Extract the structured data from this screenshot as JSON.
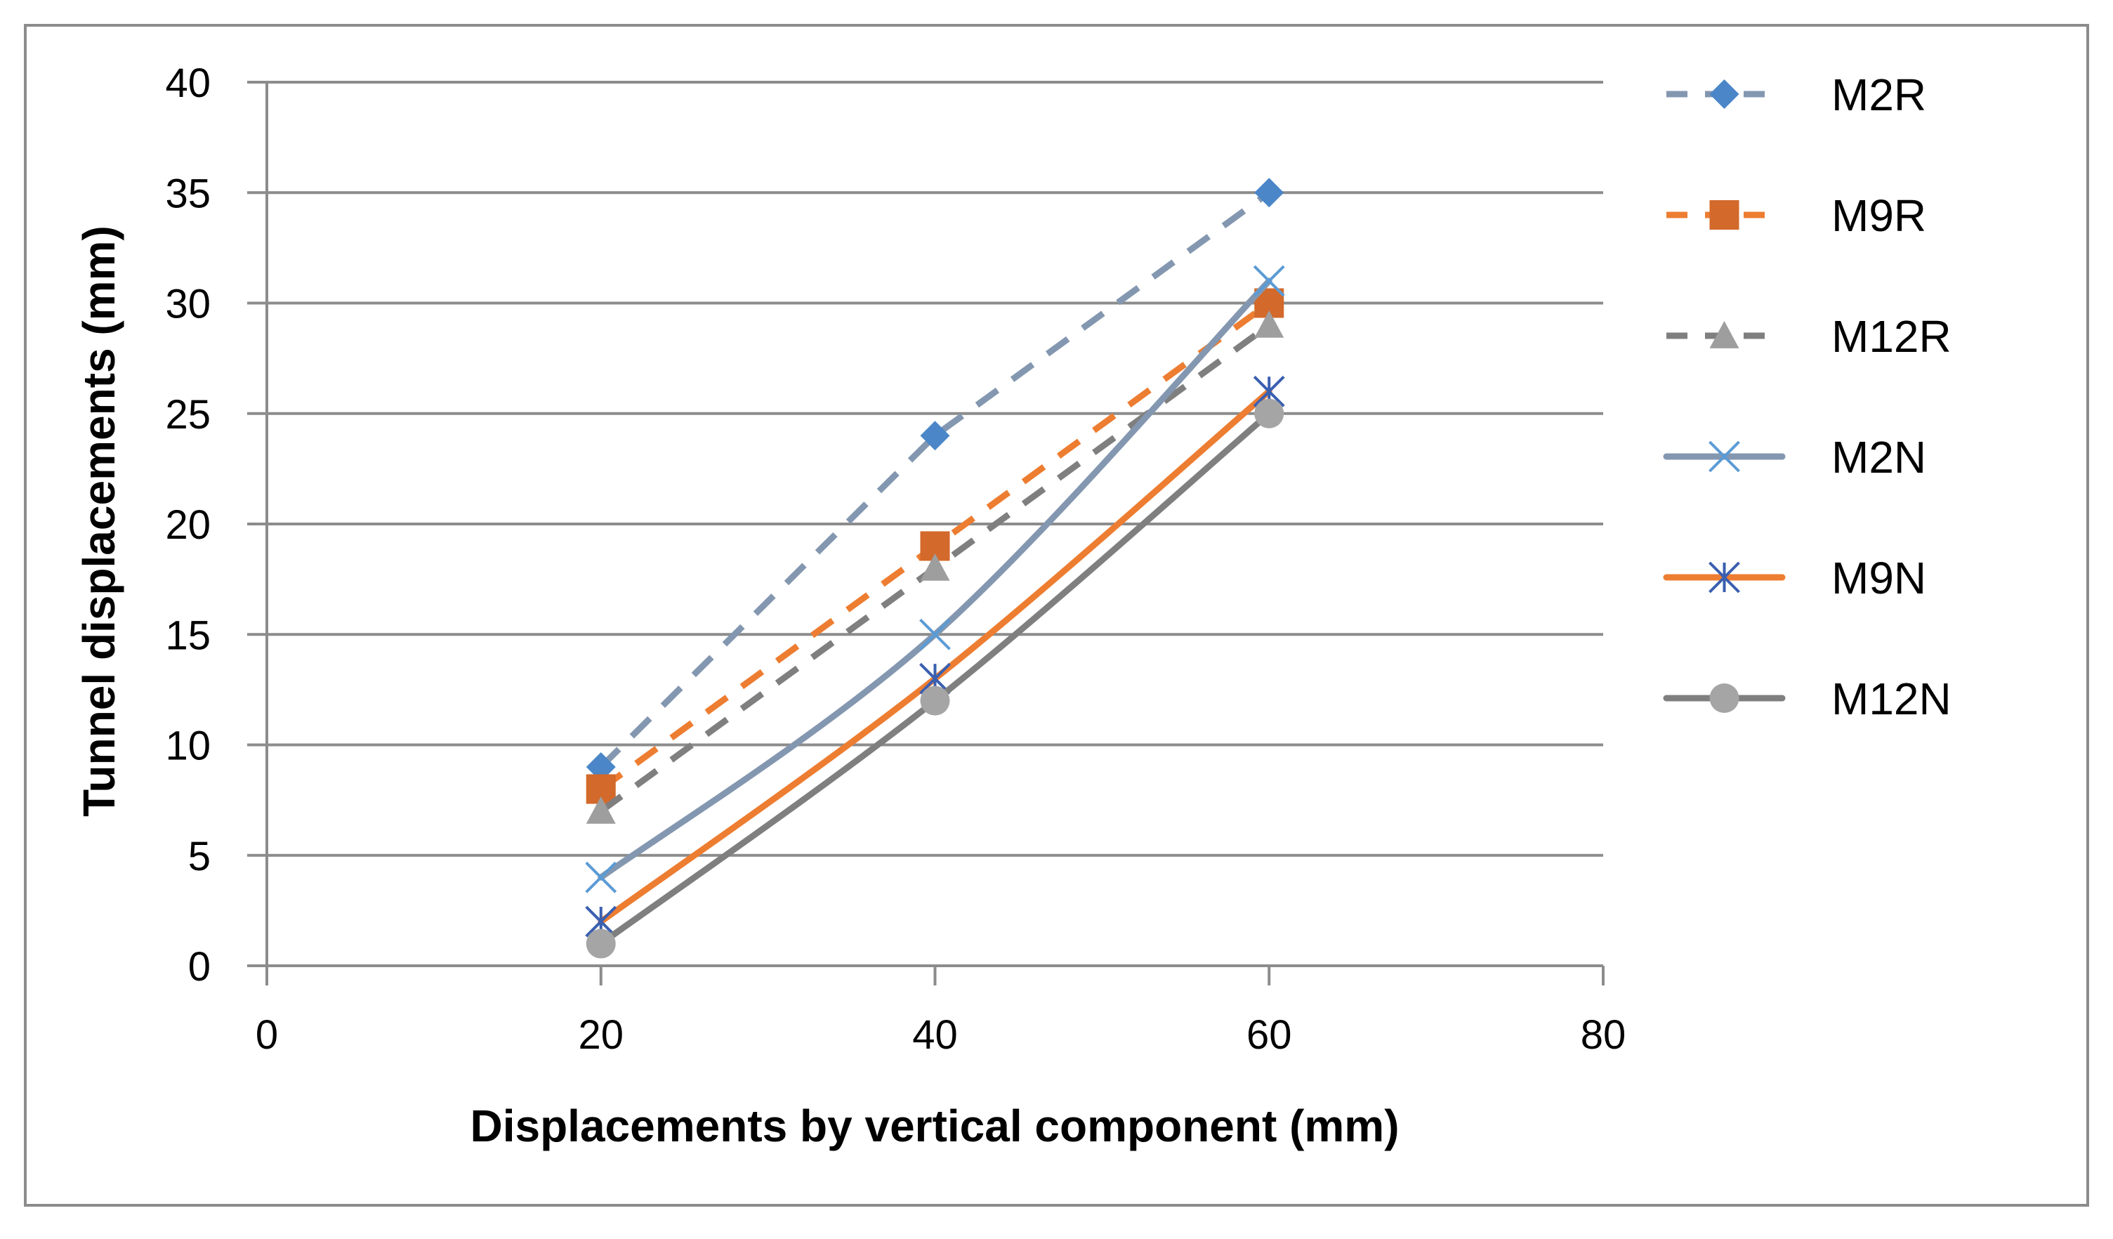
{
  "chart_data": {
    "type": "line",
    "title": "",
    "xlabel": "Displacements by vertical component (mm)",
    "ylabel": "Tunnel displacements (mm)",
    "xlim": [
      0,
      80
    ],
    "ylim": [
      0,
      40
    ],
    "xticks": [
      0,
      20,
      40,
      60,
      80
    ],
    "yticks": [
      0,
      5,
      10,
      15,
      20,
      25,
      30,
      35,
      40
    ],
    "grid": "horizontal",
    "legend_position": "right",
    "x": [
      20,
      40,
      60
    ],
    "series": [
      {
        "name": "M2R",
        "values": [
          9,
          24,
          35
        ],
        "color": "#8497B0",
        "marker_color": "#4A86C8",
        "marker": "diamond",
        "line_style": "dashed",
        "smooth": false
      },
      {
        "name": "M9R",
        "values": [
          8,
          19,
          30
        ],
        "color": "#ED7D31",
        "marker_color": "#D3692A",
        "marker": "square",
        "line_style": "dashed",
        "smooth": false
      },
      {
        "name": "M12R",
        "values": [
          7,
          18,
          29
        ],
        "color": "#7F7F7F",
        "marker_color": "#9E9E9E",
        "marker": "triangle",
        "line_style": "dashed",
        "smooth": false
      },
      {
        "name": "M2N",
        "values": [
          4,
          15,
          31
        ],
        "color": "#8497B0",
        "marker_color": "#5B9BD5",
        "marker": "x",
        "line_style": "solid",
        "smooth": true
      },
      {
        "name": "M9N",
        "values": [
          2,
          13,
          26
        ],
        "color": "#ED7D31",
        "marker_color": "#3A5FB0",
        "marker": "star",
        "line_style": "solid",
        "smooth": true
      },
      {
        "name": "M12N",
        "values": [
          1,
          12,
          25
        ],
        "color": "#7F7F7F",
        "marker_color": "#A5A5A5",
        "marker": "circle",
        "line_style": "solid",
        "smooth": true
      }
    ]
  }
}
